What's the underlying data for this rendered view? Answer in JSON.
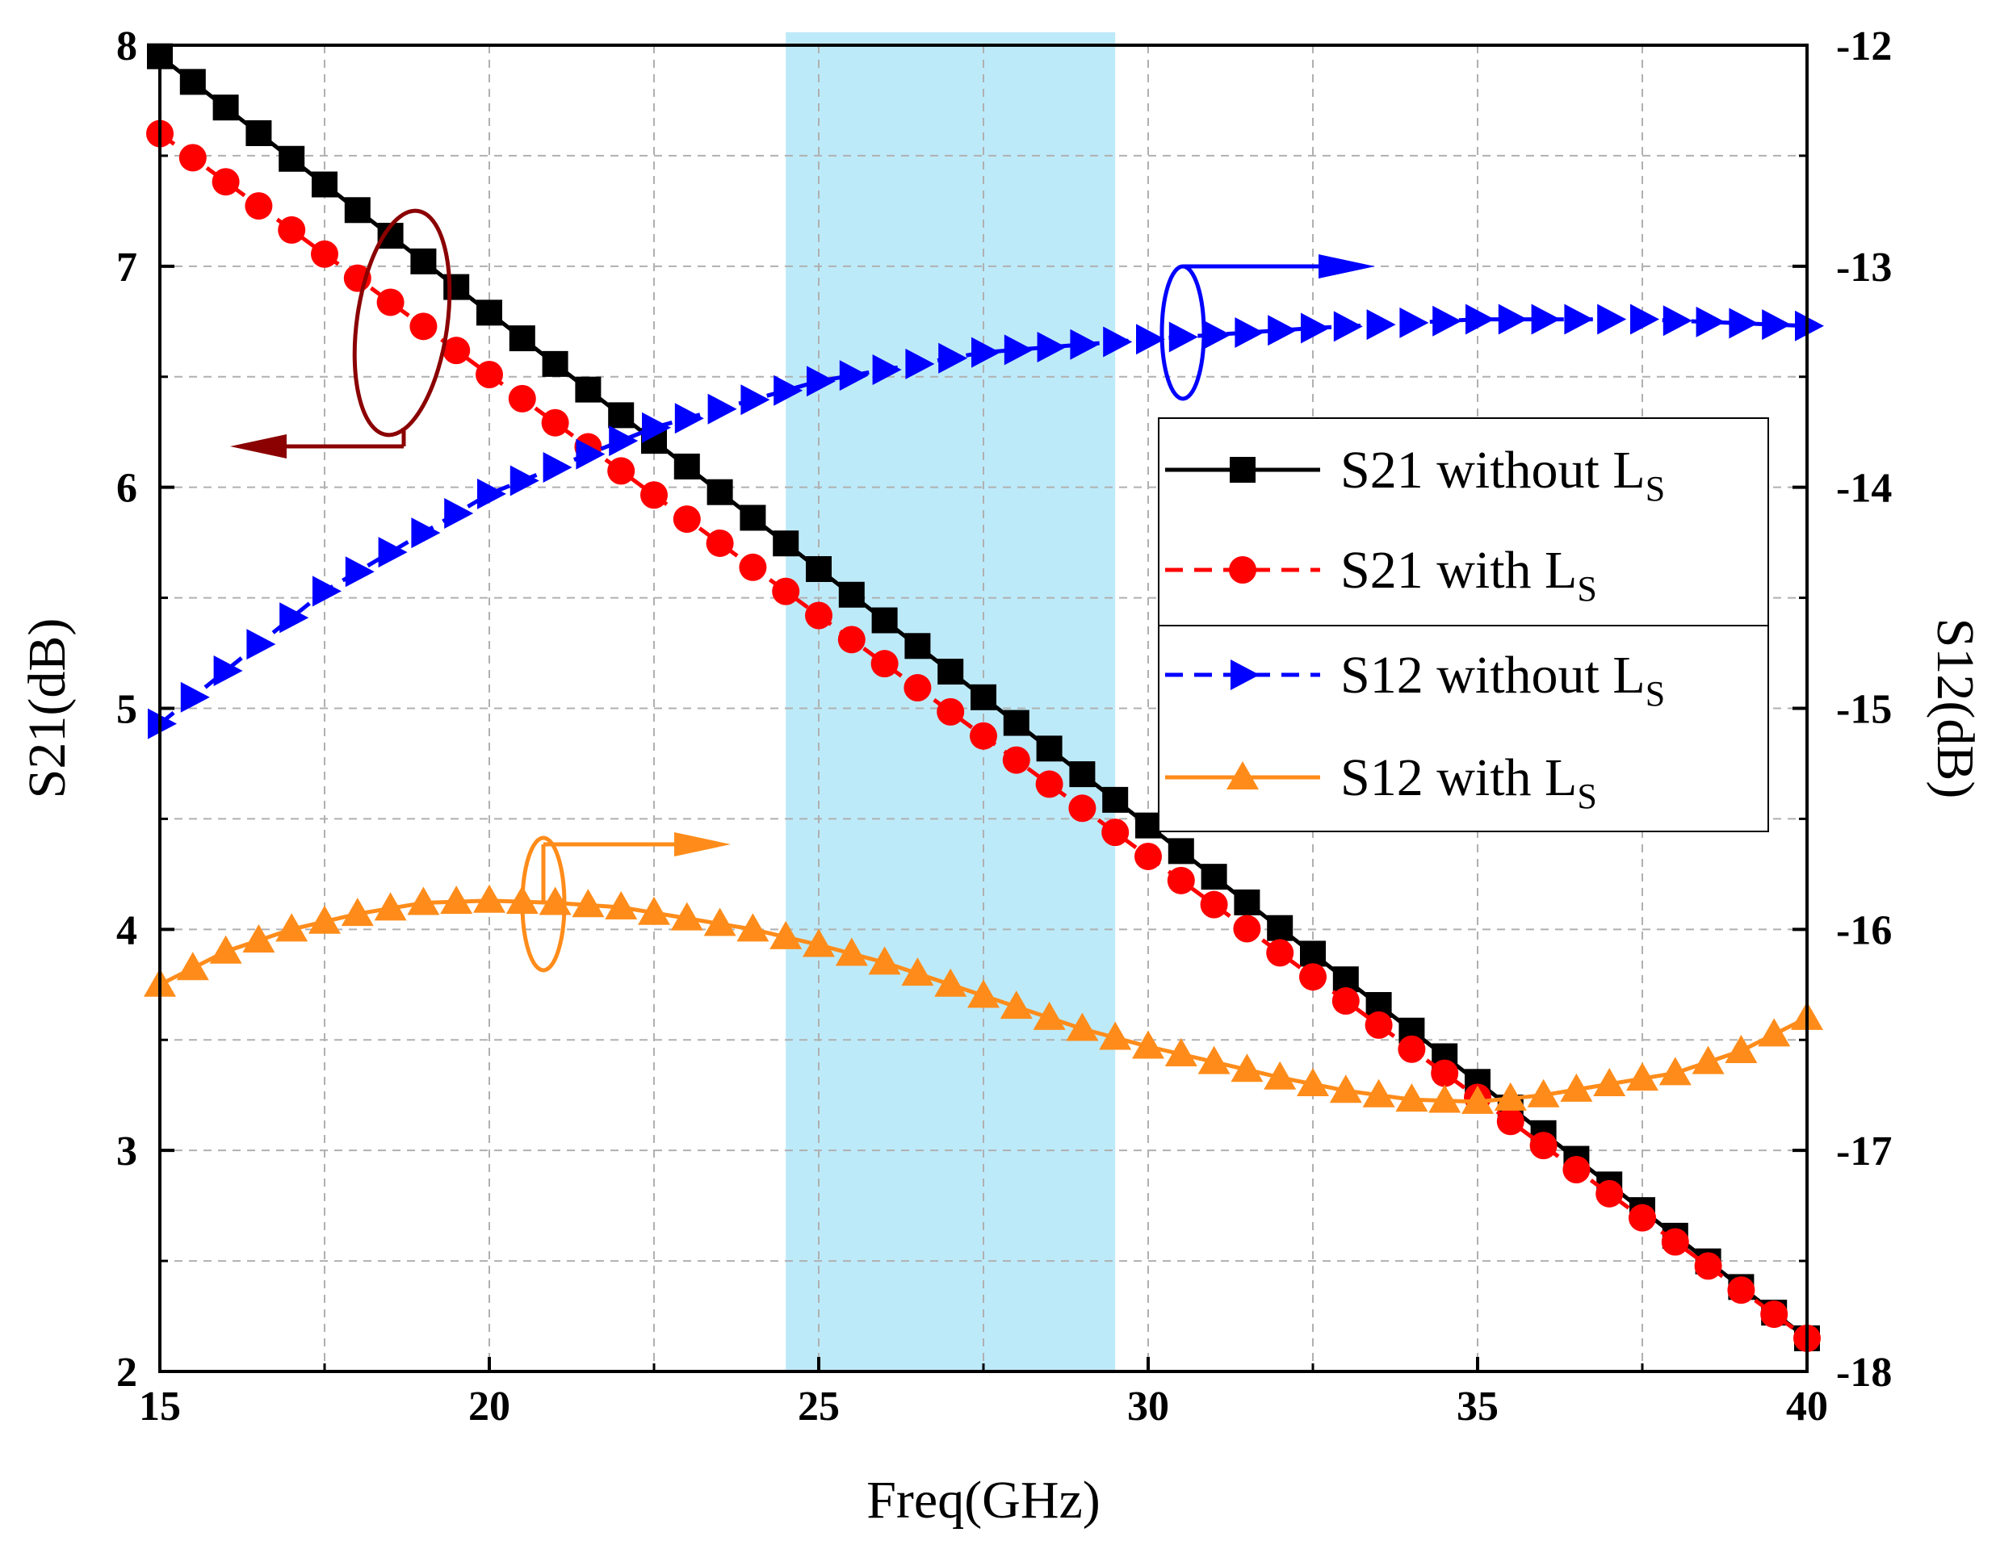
{
  "chart_data": {
    "type": "line",
    "xlabel": "Freq(GHz)",
    "ylabel_left": "S21(dB)",
    "ylabel_right": "S12(dB)",
    "xlim": [
      15,
      40
    ],
    "ylim_left": [
      2,
      8
    ],
    "ylim_right": [
      -18,
      -12
    ],
    "x_ticks": [
      "15",
      "20",
      "25",
      "30",
      "35",
      "40"
    ],
    "y_left_ticks": [
      "2",
      "3",
      "4",
      "5",
      "6",
      "7",
      "8"
    ],
    "y_right_ticks": [
      "-18",
      "-17",
      "-16",
      "-15",
      "-14",
      "-13",
      "-12"
    ],
    "grid": true,
    "highlight_band": {
      "x_start": 24.5,
      "x_end": 29.5,
      "color": "#bdeaf9"
    },
    "series": [
      {
        "name": "S21 without L",
        "subscript": "S",
        "axis": "left",
        "color": "#000000",
        "line": "solid",
        "marker": "square",
        "x": [
          15,
          40
        ],
        "y": [
          7.95,
          2.15
        ]
      },
      {
        "name": "S21 with L",
        "subscript": "S",
        "axis": "left",
        "color": "#ff0000",
        "line": "dashed",
        "marker": "circle",
        "x": [
          15,
          40
        ],
        "y": [
          7.6,
          2.15
        ]
      },
      {
        "name": "S12 without L",
        "subscript": "S",
        "axis": "right",
        "color": "#0000ff",
        "line": "dashed",
        "marker": "triangle-right",
        "x": [
          15,
          17.5,
          20,
          22.5,
          25,
          27.5,
          30,
          32.5,
          35,
          37.5,
          40
        ],
        "y": [
          -15.07,
          -14.47,
          -14.03,
          -13.73,
          -13.52,
          -13.39,
          -13.33,
          -13.28,
          -13.24,
          -13.24,
          -13.27
        ]
      },
      {
        "name": "S12 with L",
        "subscript": "S",
        "axis": "right",
        "color": "#ff8c1a",
        "line": "solid",
        "marker": "triangle-up",
        "x": [
          15,
          16,
          17,
          18,
          19,
          20,
          21,
          22,
          23,
          24,
          25,
          26,
          27,
          28,
          29,
          30,
          31,
          32,
          33,
          34,
          35,
          36,
          37,
          38,
          39,
          40
        ],
        "y": [
          -16.25,
          -16.1,
          -16.0,
          -15.93,
          -15.88,
          -15.87,
          -15.88,
          -15.9,
          -15.95,
          -16.0,
          -16.07,
          -16.15,
          -16.25,
          -16.35,
          -16.45,
          -16.53,
          -16.6,
          -16.67,
          -16.73,
          -16.77,
          -16.78,
          -16.75,
          -16.7,
          -16.65,
          -16.55,
          -16.4
        ]
      }
    ]
  }
}
